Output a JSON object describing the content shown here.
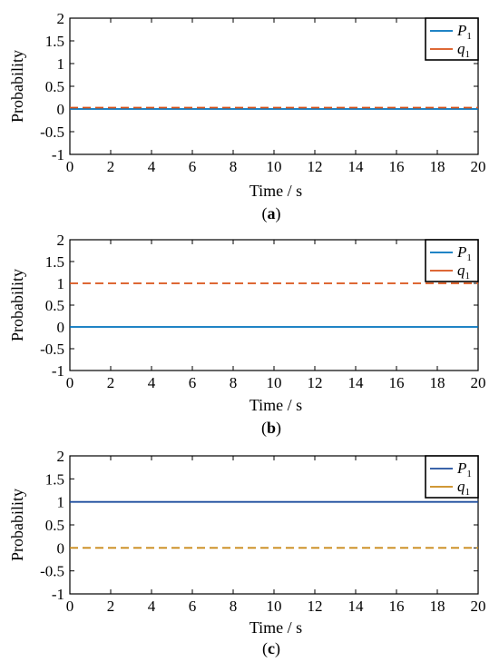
{
  "chart_data": [
    {
      "type": "line",
      "caption": "a",
      "xlabel": "Time / s",
      "ylabel": "Probability",
      "xlim": [
        0,
        20
      ],
      "ylim": [
        -1,
        2
      ],
      "x_ticks": [
        "0",
        "2",
        "4",
        "6",
        "8",
        "10",
        "12",
        "14",
        "16",
        "18",
        "20"
      ],
      "y_ticks": [
        "2",
        "1.5",
        "1",
        "0.5",
        "0",
        "-0.5",
        "-1"
      ],
      "legend_position": "top-right",
      "series": [
        {
          "name": "P",
          "sub": "1",
          "color": "#0072BD",
          "dash": "solid",
          "x": [
            0,
            20
          ],
          "y": [
            0,
            0
          ]
        },
        {
          "name": "q",
          "sub": "1",
          "color": "#D95319",
          "dash": "dashed",
          "x": [
            0,
            20
          ],
          "y": [
            0.03,
            0.03
          ]
        }
      ]
    },
    {
      "type": "line",
      "caption": "b",
      "xlabel": "Time / s",
      "ylabel": "Probability",
      "xlim": [
        0,
        20
      ],
      "ylim": [
        -1,
        2
      ],
      "x_ticks": [
        "0",
        "2",
        "4",
        "6",
        "8",
        "10",
        "12",
        "14",
        "16",
        "18",
        "20"
      ],
      "y_ticks": [
        "2",
        "1.5",
        "1",
        "0.5",
        "0",
        "-0.5",
        "-1"
      ],
      "legend_position": "top-right",
      "series": [
        {
          "name": "P",
          "sub": "1",
          "color": "#0072BD",
          "dash": "solid",
          "x": [
            0,
            20
          ],
          "y": [
            0,
            0
          ]
        },
        {
          "name": "q",
          "sub": "1",
          "color": "#D95319",
          "dash": "dashed",
          "x": [
            0,
            20
          ],
          "y": [
            1,
            1
          ]
        }
      ]
    },
    {
      "type": "line",
      "caption": "c",
      "xlabel": "Time / s",
      "ylabel": "Probability",
      "xlim": [
        0,
        20
      ],
      "ylim": [
        -1,
        2
      ],
      "x_ticks": [
        "0",
        "2",
        "4",
        "6",
        "8",
        "10",
        "12",
        "14",
        "16",
        "18",
        "20"
      ],
      "y_ticks": [
        "2",
        "1.5",
        "1",
        "0.5",
        "0",
        "-0.5",
        "-1"
      ],
      "legend_position": "top-right",
      "series": [
        {
          "name": "P",
          "sub": "1",
          "color": "#1F4E9E",
          "dash": "solid",
          "x": [
            0,
            20
          ],
          "y": [
            1,
            1
          ]
        },
        {
          "name": "q",
          "sub": "1",
          "color": "#C98A1A",
          "dash": "dashed",
          "x": [
            0,
            20
          ],
          "y": [
            0,
            0
          ]
        }
      ]
    }
  ]
}
